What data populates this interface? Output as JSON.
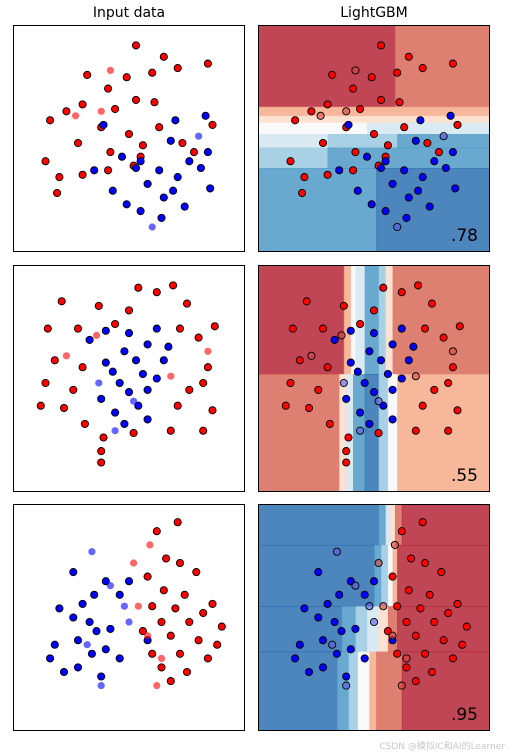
{
  "titles": {
    "input": "Input data",
    "model": "LightGBM"
  },
  "watermark": "CSDN @模拟IC和AI的Learner",
  "colors": {
    "red_point": "#ff0000",
    "blue_point": "#0000ff",
    "red_test": "#d94040",
    "blue_test": "#5a5ae6",
    "rdbu": [
      "#b2182b",
      "#d6604d",
      "#f4a582",
      "#fddbc7",
      "#f7f7f7",
      "#d1e5f0",
      "#92c5de",
      "#4393c3",
      "#2166ac"
    ]
  },
  "chart_data": [
    {
      "type": "scatter",
      "dataset": "moons",
      "score": ".78",
      "train_red": [
        [
          0.53,
          0.09
        ],
        [
          0.65,
          0.14
        ],
        [
          0.32,
          0.22
        ],
        [
          0.41,
          0.28
        ],
        [
          0.49,
          0.23
        ],
        [
          0.6,
          0.21
        ],
        [
          0.71,
          0.19
        ],
        [
          0.84,
          0.17
        ],
        [
          0.23,
          0.38
        ],
        [
          0.3,
          0.35
        ],
        [
          0.44,
          0.37
        ],
        [
          0.53,
          0.33
        ],
        [
          0.61,
          0.34
        ],
        [
          0.38,
          0.45
        ],
        [
          0.5,
          0.48
        ],
        [
          0.63,
          0.45
        ],
        [
          0.86,
          0.44
        ],
        [
          0.16,
          0.42
        ],
        [
          0.28,
          0.52
        ],
        [
          0.42,
          0.56
        ],
        [
          0.55,
          0.58
        ],
        [
          0.73,
          0.52
        ],
        [
          0.2,
          0.67
        ],
        [
          0.3,
          0.66
        ],
        [
          0.41,
          0.64
        ],
        [
          0.52,
          0.62
        ],
        [
          0.78,
          0.56
        ],
        [
          0.14,
          0.6
        ],
        [
          0.19,
          0.74
        ],
        [
          0.56,
          0.53
        ]
      ],
      "train_blue": [
        [
          0.7,
          0.42
        ],
        [
          0.83,
          0.4
        ],
        [
          0.39,
          0.44
        ],
        [
          0.68,
          0.51
        ],
        [
          0.55,
          0.6
        ],
        [
          0.47,
          0.58
        ],
        [
          0.84,
          0.56
        ],
        [
          0.76,
          0.6
        ],
        [
          0.53,
          0.63
        ],
        [
          0.63,
          0.64
        ],
        [
          0.35,
          0.64
        ],
        [
          0.81,
          0.63
        ],
        [
          0.71,
          0.67
        ],
        [
          0.58,
          0.7
        ],
        [
          0.85,
          0.72
        ],
        [
          0.43,
          0.73
        ],
        [
          0.74,
          0.8
        ],
        [
          0.49,
          0.79
        ],
        [
          0.65,
          0.76
        ],
        [
          0.64,
          0.85
        ],
        [
          0.55,
          0.82
        ],
        [
          0.69,
          0.73
        ]
      ],
      "test_red": [
        [
          0.42,
          0.2
        ],
        [
          0.38,
          0.38
        ],
        [
          0.27,
          0.4
        ]
      ],
      "test_blue": [
        [
          0.8,
          0.49
        ],
        [
          0.6,
          0.89
        ]
      ],
      "regions": [
        {
          "x0": 0.0,
          "y0": 0.0,
          "x1": 0.59,
          "y1": 0.36,
          "c": 0
        },
        {
          "x0": 0.59,
          "y0": 0.0,
          "x1": 1.0,
          "y1": 0.36,
          "c": 1
        },
        {
          "x0": 0.0,
          "y0": 0.36,
          "x1": 1.0,
          "y1": 0.4,
          "c": 2
        },
        {
          "x0": 0.0,
          "y0": 0.4,
          "x1": 1.0,
          "y1": 0.43,
          "c": 3
        },
        {
          "x0": 0.0,
          "y0": 0.43,
          "x1": 0.47,
          "y1": 0.48,
          "c": 4
        },
        {
          "x0": 0.47,
          "y0": 0.43,
          "x1": 1.0,
          "y1": 0.48,
          "c": 5
        },
        {
          "x0": 0.0,
          "y0": 0.48,
          "x1": 0.3,
          "y1": 0.54,
          "c": 5
        },
        {
          "x0": 0.3,
          "y0": 0.48,
          "x1": 0.6,
          "y1": 0.54,
          "c": 6
        },
        {
          "x0": 0.6,
          "y0": 0.48,
          "x1": 1.0,
          "y1": 0.54,
          "c": 7
        },
        {
          "x0": 0.0,
          "y0": 0.54,
          "x1": 0.3,
          "y1": 0.63,
          "c": 6
        },
        {
          "x0": 0.3,
          "y0": 0.54,
          "x1": 1.0,
          "y1": 0.63,
          "c": 7
        },
        {
          "x0": 0.0,
          "y0": 0.63,
          "x1": 0.51,
          "y1": 1.0,
          "c": 7
        },
        {
          "x0": 0.51,
          "y0": 0.63,
          "x1": 1.0,
          "y1": 1.0,
          "c": 8
        }
      ]
    },
    {
      "type": "scatter",
      "dataset": "circles",
      "score": ".55",
      "train_red": [
        [
          0.54,
          0.1
        ],
        [
          0.69,
          0.09
        ],
        [
          0.62,
          0.12
        ],
        [
          0.21,
          0.16
        ],
        [
          0.37,
          0.18
        ],
        [
          0.5,
          0.2
        ],
        [
          0.75,
          0.17
        ],
        [
          0.15,
          0.28
        ],
        [
          0.28,
          0.28
        ],
        [
          0.44,
          0.26
        ],
        [
          0.72,
          0.28
        ],
        [
          0.87,
          0.27
        ],
        [
          0.8,
          0.32
        ],
        [
          0.18,
          0.42
        ],
        [
          0.3,
          0.45
        ],
        [
          0.84,
          0.45
        ],
        [
          0.14,
          0.52
        ],
        [
          0.26,
          0.55
        ],
        [
          0.76,
          0.55
        ],
        [
          0.82,
          0.52
        ],
        [
          0.12,
          0.62
        ],
        [
          0.22,
          0.63
        ],
        [
          0.71,
          0.62
        ],
        [
          0.86,
          0.64
        ],
        [
          0.31,
          0.7
        ],
        [
          0.52,
          0.74
        ],
        [
          0.68,
          0.73
        ],
        [
          0.39,
          0.76
        ],
        [
          0.82,
          0.73
        ],
        [
          0.38,
          0.82
        ],
        [
          0.38,
          0.87
        ]
      ],
      "train_blue": [
        [
          0.4,
          0.29
        ],
        [
          0.5,
          0.3
        ],
        [
          0.62,
          0.28
        ],
        [
          0.33,
          0.33
        ],
        [
          0.58,
          0.35
        ],
        [
          0.48,
          0.38
        ],
        [
          0.67,
          0.36
        ],
        [
          0.4,
          0.43
        ],
        [
          0.53,
          0.42
        ],
        [
          0.65,
          0.42
        ],
        [
          0.43,
          0.47
        ],
        [
          0.56,
          0.48
        ],
        [
          0.62,
          0.5
        ],
        [
          0.46,
          0.52
        ],
        [
          0.58,
          0.55
        ],
        [
          0.5,
          0.56
        ],
        [
          0.38,
          0.59
        ],
        [
          0.54,
          0.62
        ],
        [
          0.44,
          0.65
        ],
        [
          0.58,
          0.68
        ],
        [
          0.48,
          0.7
        ]
      ],
      "test_red": [
        [
          0.36,
          0.31
        ],
        [
          0.23,
          0.4
        ],
        [
          0.84,
          0.38
        ],
        [
          0.68,
          0.49
        ]
      ],
      "test_blue": [
        [
          0.37,
          0.52
        ],
        [
          0.52,
          0.6
        ],
        [
          0.44,
          0.73
        ]
      ],
      "regions": [
        {
          "x0": 0.0,
          "y0": 0.0,
          "x1": 0.37,
          "y1": 0.48,
          "c": 0
        },
        {
          "x0": 0.37,
          "y0": 0.0,
          "x1": 0.4,
          "y1": 0.48,
          "c": 2
        },
        {
          "x0": 0.4,
          "y0": 0.0,
          "x1": 0.42,
          "y1": 0.48,
          "c": 4
        },
        {
          "x0": 0.42,
          "y0": 0.0,
          "x1": 0.46,
          "y1": 0.48,
          "c": 5
        },
        {
          "x0": 0.46,
          "y0": 0.0,
          "x1": 0.52,
          "y1": 0.48,
          "c": 7
        },
        {
          "x0": 0.52,
          "y0": 0.0,
          "x1": 0.55,
          "y1": 0.48,
          "c": 6
        },
        {
          "x0": 0.55,
          "y0": 0.0,
          "x1": 0.58,
          "y1": 0.48,
          "c": 3
        },
        {
          "x0": 0.58,
          "y0": 0.0,
          "x1": 1.0,
          "y1": 0.48,
          "c": 1
        },
        {
          "x0": 0.0,
          "y0": 0.48,
          "x1": 0.35,
          "y1": 1.0,
          "c": 1
        },
        {
          "x0": 0.35,
          "y0": 0.48,
          "x1": 0.38,
          "y1": 1.0,
          "c": 3
        },
        {
          "x0": 0.38,
          "y0": 0.48,
          "x1": 0.41,
          "y1": 1.0,
          "c": 5
        },
        {
          "x0": 0.41,
          "y0": 0.48,
          "x1": 0.46,
          "y1": 1.0,
          "c": 7
        },
        {
          "x0": 0.46,
          "y0": 0.48,
          "x1": 0.52,
          "y1": 1.0,
          "c": 8
        },
        {
          "x0": 0.52,
          "y0": 0.48,
          "x1": 0.56,
          "y1": 1.0,
          "c": 6
        },
        {
          "x0": 0.56,
          "y0": 0.48,
          "x1": 0.6,
          "y1": 1.0,
          "c": 4
        },
        {
          "x0": 0.6,
          "y0": 0.48,
          "x1": 1.0,
          "y1": 1.0,
          "c": 2
        }
      ]
    },
    {
      "type": "scatter",
      "dataset": "linearly_separable",
      "score": ".95",
      "train_red": [
        [
          0.71,
          0.08
        ],
        [
          0.62,
          0.12
        ],
        [
          0.66,
          0.24
        ],
        [
          0.72,
          0.26
        ],
        [
          0.58,
          0.32
        ],
        [
          0.79,
          0.3
        ],
        [
          0.65,
          0.38
        ],
        [
          0.74,
          0.4
        ],
        [
          0.86,
          0.44
        ],
        [
          0.6,
          0.45
        ],
        [
          0.7,
          0.46
        ],
        [
          0.82,
          0.48
        ],
        [
          0.64,
          0.52
        ],
        [
          0.76,
          0.52
        ],
        [
          0.9,
          0.54
        ],
        [
          0.56,
          0.56
        ],
        [
          0.68,
          0.58
        ],
        [
          0.8,
          0.6
        ],
        [
          0.88,
          0.62
        ],
        [
          0.6,
          0.66
        ],
        [
          0.72,
          0.66
        ],
        [
          0.84,
          0.68
        ],
        [
          0.64,
          0.72
        ],
        [
          0.75,
          0.74
        ],
        [
          0.68,
          0.78
        ]
      ],
      "train_blue": [
        [
          0.26,
          0.3
        ],
        [
          0.4,
          0.34
        ],
        [
          0.5,
          0.34
        ],
        [
          0.35,
          0.4
        ],
        [
          0.46,
          0.4
        ],
        [
          0.3,
          0.44
        ],
        [
          0.2,
          0.46
        ],
        [
          0.26,
          0.5
        ],
        [
          0.33,
          0.52
        ],
        [
          0.42,
          0.55
        ],
        [
          0.36,
          0.56
        ],
        [
          0.28,
          0.6
        ],
        [
          0.18,
          0.62
        ],
        [
          0.4,
          0.64
        ],
        [
          0.34,
          0.66
        ],
        [
          0.46,
          0.68
        ],
        [
          0.16,
          0.68
        ],
        [
          0.28,
          0.72
        ],
        [
          0.22,
          0.74
        ],
        [
          0.38,
          0.76
        ],
        [
          0.58,
          0.6
        ]
      ],
      "test_red": [
        [
          0.59,
          0.18
        ],
        [
          0.52,
          0.26
        ],
        [
          0.54,
          0.45
        ],
        [
          0.58,
          0.58
        ],
        [
          0.62,
          0.8
        ],
        [
          0.64,
          0.68
        ]
      ],
      "test_blue": [
        [
          0.34,
          0.21
        ],
        [
          0.42,
          0.36
        ],
        [
          0.48,
          0.45
        ],
        [
          0.5,
          0.52
        ],
        [
          0.38,
          0.8
        ],
        [
          0.32,
          0.62
        ]
      ],
      "regions": [
        {
          "x0": 0.0,
          "y0": 0.0,
          "x1": 0.52,
          "y1": 0.18,
          "c": 8
        },
        {
          "x0": 0.52,
          "y0": 0.0,
          "x1": 0.55,
          "y1": 0.18,
          "c": 7
        },
        {
          "x0": 0.55,
          "y0": 0.0,
          "x1": 0.57,
          "y1": 0.18,
          "c": 5
        },
        {
          "x0": 0.57,
          "y0": 0.0,
          "x1": 0.59,
          "y1": 0.18,
          "c": 3
        },
        {
          "x0": 0.59,
          "y0": 0.0,
          "x1": 0.62,
          "y1": 0.18,
          "c": 1
        },
        {
          "x0": 0.62,
          "y0": 0.0,
          "x1": 1.0,
          "y1": 0.18,
          "c": 0
        },
        {
          "x0": 0.0,
          "y0": 0.18,
          "x1": 0.5,
          "y1": 0.45,
          "c": 8
        },
        {
          "x0": 0.5,
          "y0": 0.18,
          "x1": 0.53,
          "y1": 0.45,
          "c": 7
        },
        {
          "x0": 0.53,
          "y0": 0.18,
          "x1": 0.56,
          "y1": 0.45,
          "c": 6
        },
        {
          "x0": 0.56,
          "y0": 0.18,
          "x1": 0.58,
          "y1": 0.45,
          "c": 4
        },
        {
          "x0": 0.58,
          "y0": 0.18,
          "x1": 0.6,
          "y1": 0.45,
          "c": 2
        },
        {
          "x0": 0.6,
          "y0": 0.18,
          "x1": 1.0,
          "y1": 0.45,
          "c": 0
        },
        {
          "x0": 0.0,
          "y0": 0.45,
          "x1": 0.36,
          "y1": 0.65,
          "c": 8
        },
        {
          "x0": 0.36,
          "y0": 0.45,
          "x1": 0.42,
          "y1": 0.65,
          "c": 7
        },
        {
          "x0": 0.42,
          "y0": 0.45,
          "x1": 0.47,
          "y1": 0.65,
          "c": 6
        },
        {
          "x0": 0.47,
          "y0": 0.45,
          "x1": 0.52,
          "y1": 0.65,
          "c": 5
        },
        {
          "x0": 0.52,
          "y0": 0.45,
          "x1": 0.56,
          "y1": 0.65,
          "c": 3
        },
        {
          "x0": 0.56,
          "y0": 0.45,
          "x1": 0.6,
          "y1": 0.65,
          "c": 1
        },
        {
          "x0": 0.6,
          "y0": 0.45,
          "x1": 1.0,
          "y1": 0.65,
          "c": 0
        },
        {
          "x0": 0.0,
          "y0": 0.65,
          "x1": 0.34,
          "y1": 1.0,
          "c": 8
        },
        {
          "x0": 0.34,
          "y0": 0.65,
          "x1": 0.39,
          "y1": 1.0,
          "c": 7
        },
        {
          "x0": 0.39,
          "y0": 0.65,
          "x1": 0.43,
          "y1": 1.0,
          "c": 6
        },
        {
          "x0": 0.43,
          "y0": 0.65,
          "x1": 0.48,
          "y1": 1.0,
          "c": 4
        },
        {
          "x0": 0.48,
          "y0": 0.65,
          "x1": 0.51,
          "y1": 1.0,
          "c": 2
        },
        {
          "x0": 0.51,
          "y0": 0.65,
          "x1": 0.62,
          "y1": 1.0,
          "c": 1
        },
        {
          "x0": 0.62,
          "y0": 0.65,
          "x1": 1.0,
          "y1": 1.0,
          "c": 0
        }
      ]
    }
  ]
}
